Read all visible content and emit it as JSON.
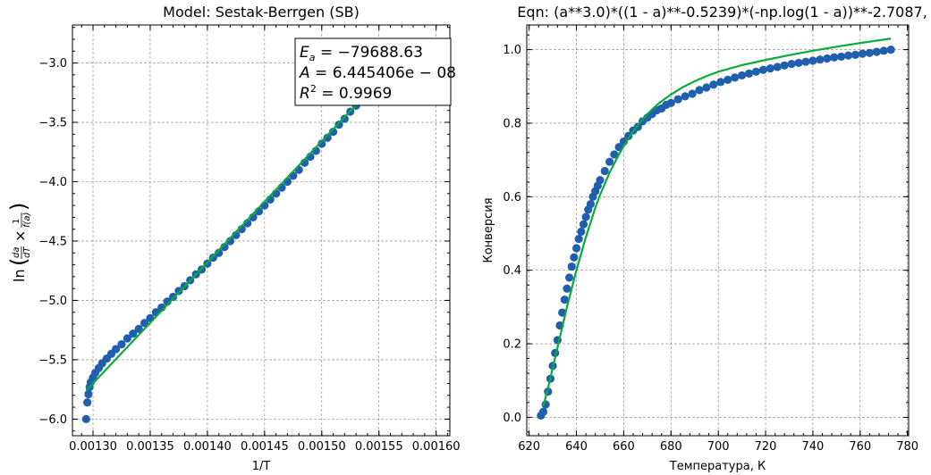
{
  "chart_data": [
    {
      "type": "scatter",
      "title": "Model: Sestak-Berrgen (SB)",
      "xlabel": "1/T",
      "ylabel": "ln(da/dT × 1/f(a))",
      "xlim": [
        0.001282,
        0.001612
      ],
      "ylim": [
        -6.14,
        -2.68
      ],
      "xticks": [
        0.0013,
        0.00135,
        0.0014,
        0.00145,
        0.0015,
        0.00155,
        0.0016
      ],
      "xtick_labels": [
        "0.00130",
        "0.00135",
        "0.00140",
        "0.00145",
        "0.00150",
        "0.00155",
        "0.00160"
      ],
      "yticks": [
        -6.0,
        -5.5,
        -5.0,
        -4.5,
        -4.0,
        -3.5,
        -3.0
      ],
      "ytick_labels": [
        "−6.0",
        "−5.5",
        "−5.0",
        "−4.5",
        "−4.0",
        "−3.5",
        "−3.0"
      ],
      "annotation": [
        "E_a = −79688.63",
        "A = 6.445406e − 08",
        "R² = 0.9969"
      ],
      "grid": true,
      "series": [
        {
          "kind": "points",
          "color": "#1f5fae",
          "x": [
            0.001294,
            0.001295,
            0.001296,
            0.001297,
            0.001298,
            0.0013,
            0.001302,
            0.001305,
            0.001308,
            0.001312,
            0.001316,
            0.00132,
            0.001325,
            0.00133,
            0.001335,
            0.00134,
            0.001345,
            0.00135,
            0.001355,
            0.00136,
            0.001365,
            0.00137,
            0.001375,
            0.00138,
            0.001385,
            0.00139,
            0.001395,
            0.0014,
            0.001405,
            0.00141,
            0.001415,
            0.00142,
            0.001425,
            0.00143,
            0.001435,
            0.00144,
            0.001445,
            0.00145,
            0.001455,
            0.00146,
            0.001465,
            0.00147,
            0.001475,
            0.00148,
            0.001485,
            0.00149,
            0.001495,
            0.0015,
            0.001505,
            0.00151,
            0.001515,
            0.00152,
            0.001525,
            0.00153,
            0.001535,
            0.00154,
            0.001545
          ],
          "y": [
            -6.0,
            -5.86,
            -5.79,
            -5.73,
            -5.69,
            -5.65,
            -5.61,
            -5.57,
            -5.53,
            -5.49,
            -5.45,
            -5.41,
            -5.37,
            -5.32,
            -5.28,
            -5.24,
            -5.19,
            -5.15,
            -5.1,
            -5.06,
            -5.01,
            -4.97,
            -4.92,
            -4.88,
            -4.83,
            -4.78,
            -4.74,
            -4.69,
            -4.64,
            -4.6,
            -4.55,
            -4.5,
            -4.45,
            -4.4,
            -4.35,
            -4.3,
            -4.25,
            -4.2,
            -4.15,
            -4.1,
            -4.05,
            -4.0,
            -3.95,
            -3.9,
            -3.84,
            -3.79,
            -3.74,
            -3.68,
            -3.63,
            -3.58,
            -3.52,
            -3.47,
            -3.41,
            -3.36,
            -3.3,
            -3.24,
            -3.2
          ]
        },
        {
          "kind": "line",
          "color": "#0aaa3c",
          "x": [
            0.001294,
            0.001545
          ],
          "y": [
            -5.76,
            -3.2
          ]
        }
      ]
    },
    {
      "type": "scatter",
      "title": "Eqn: (a**3.0)*((1 - a)**-0.5239)*(-np.log(1 - a))**-2.7087,",
      "xlabel": "Температура, К",
      "ylabel": "Конверсия",
      "xlim": [
        619.0,
        780.5
      ],
      "ylim": [
        -0.05,
        1.067
      ],
      "xticks": [
        620,
        640,
        660,
        680,
        700,
        720,
        740,
        760,
        780
      ],
      "xtick_labels": [
        "620",
        "640",
        "660",
        "680",
        "700",
        "720",
        "740",
        "760",
        "780"
      ],
      "yticks": [
        0.0,
        0.2,
        0.4,
        0.6,
        0.8,
        1.0
      ],
      "ytick_labels": [
        "0.0",
        "0.2",
        "0.4",
        "0.6",
        "0.8",
        "1.0"
      ],
      "grid": true,
      "series": [
        {
          "kind": "points",
          "color": "#1f5fae",
          "x": [
            625,
            626,
            627,
            628,
            629,
            630,
            631,
            632,
            633,
            634,
            635,
            636,
            637,
            638,
            639,
            640,
            641,
            642,
            643,
            644,
            645,
            646,
            647,
            648,
            649,
            650,
            652,
            654,
            656,
            658,
            660,
            662,
            664,
            666,
            668,
            670,
            672,
            674,
            676,
            678,
            680,
            683,
            686,
            689,
            692,
            695,
            698,
            701,
            704,
            707,
            710,
            713,
            716,
            719,
            722,
            725,
            728,
            731,
            734,
            737,
            740,
            743,
            746,
            749,
            752,
            755,
            758,
            761,
            764,
            767,
            770,
            773
          ],
          "y": [
            0.005,
            0.015,
            0.035,
            0.07,
            0.105,
            0.14,
            0.175,
            0.21,
            0.25,
            0.285,
            0.32,
            0.35,
            0.38,
            0.41,
            0.435,
            0.46,
            0.485,
            0.505,
            0.525,
            0.545,
            0.565,
            0.58,
            0.6,
            0.615,
            0.63,
            0.645,
            0.67,
            0.695,
            0.715,
            0.735,
            0.75,
            0.765,
            0.78,
            0.79,
            0.805,
            0.815,
            0.825,
            0.835,
            0.84,
            0.85,
            0.855,
            0.865,
            0.873,
            0.88,
            0.89,
            0.897,
            0.905,
            0.912,
            0.918,
            0.924,
            0.93,
            0.935,
            0.94,
            0.945,
            0.949,
            0.953,
            0.957,
            0.961,
            0.964,
            0.967,
            0.97,
            0.973,
            0.976,
            0.979,
            0.981,
            0.984,
            0.986,
            0.989,
            0.991,
            0.994,
            0.997,
            1.0
          ]
        },
        {
          "kind": "line",
          "color": "#0aaa3c",
          "x": [
            626,
            628,
            630,
            632,
            634,
            636,
            638,
            640,
            642,
            644,
            646,
            648,
            650,
            654,
            658,
            662,
            666,
            670,
            675,
            680,
            685,
            690,
            695,
            700,
            710,
            720,
            730,
            740,
            750,
            760,
            773
          ],
          "y": [
            0.03,
            0.08,
            0.135,
            0.19,
            0.245,
            0.3,
            0.35,
            0.4,
            0.445,
            0.49,
            0.53,
            0.57,
            0.605,
            0.665,
            0.715,
            0.76,
            0.795,
            0.825,
            0.855,
            0.878,
            0.898,
            0.914,
            0.928,
            0.94,
            0.958,
            0.972,
            0.985,
            0.997,
            1.008,
            1.018,
            1.03
          ]
        }
      ]
    }
  ]
}
